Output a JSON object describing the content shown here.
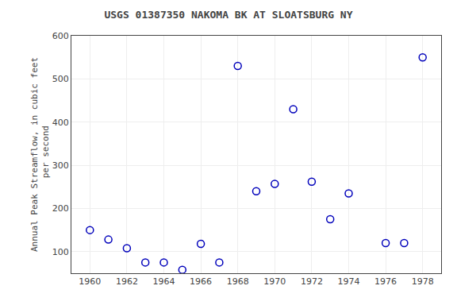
{
  "chart_data": {
    "type": "scatter",
    "title": "USGS 01387350 NAKOMA BK AT SLOATSBURG NY",
    "y_label": "Annual Peak Streamflow, in cubic feet\n per second",
    "x": [
      1960,
      1961,
      1962,
      1963,
      1964,
      1965,
      1966,
      1967,
      1968,
      1969,
      1970,
      1971,
      1972,
      1973,
      1974,
      1976,
      1977,
      1978
    ],
    "values": [
      150,
      128,
      108,
      75,
      75,
      58,
      118,
      75,
      530,
      240,
      257,
      430,
      262,
      175,
      235,
      120,
      120,
      550
    ],
    "xlim": [
      1959,
      1979
    ],
    "ylim": [
      50,
      600
    ],
    "xticks": [
      1960,
      1962,
      1964,
      1966,
      1968,
      1970,
      1972,
      1974,
      1976,
      1978
    ],
    "yticks": [
      100,
      200,
      300,
      400,
      500,
      600
    ],
    "color": "#0000BB",
    "marker": "circle-open",
    "grid": true
  }
}
